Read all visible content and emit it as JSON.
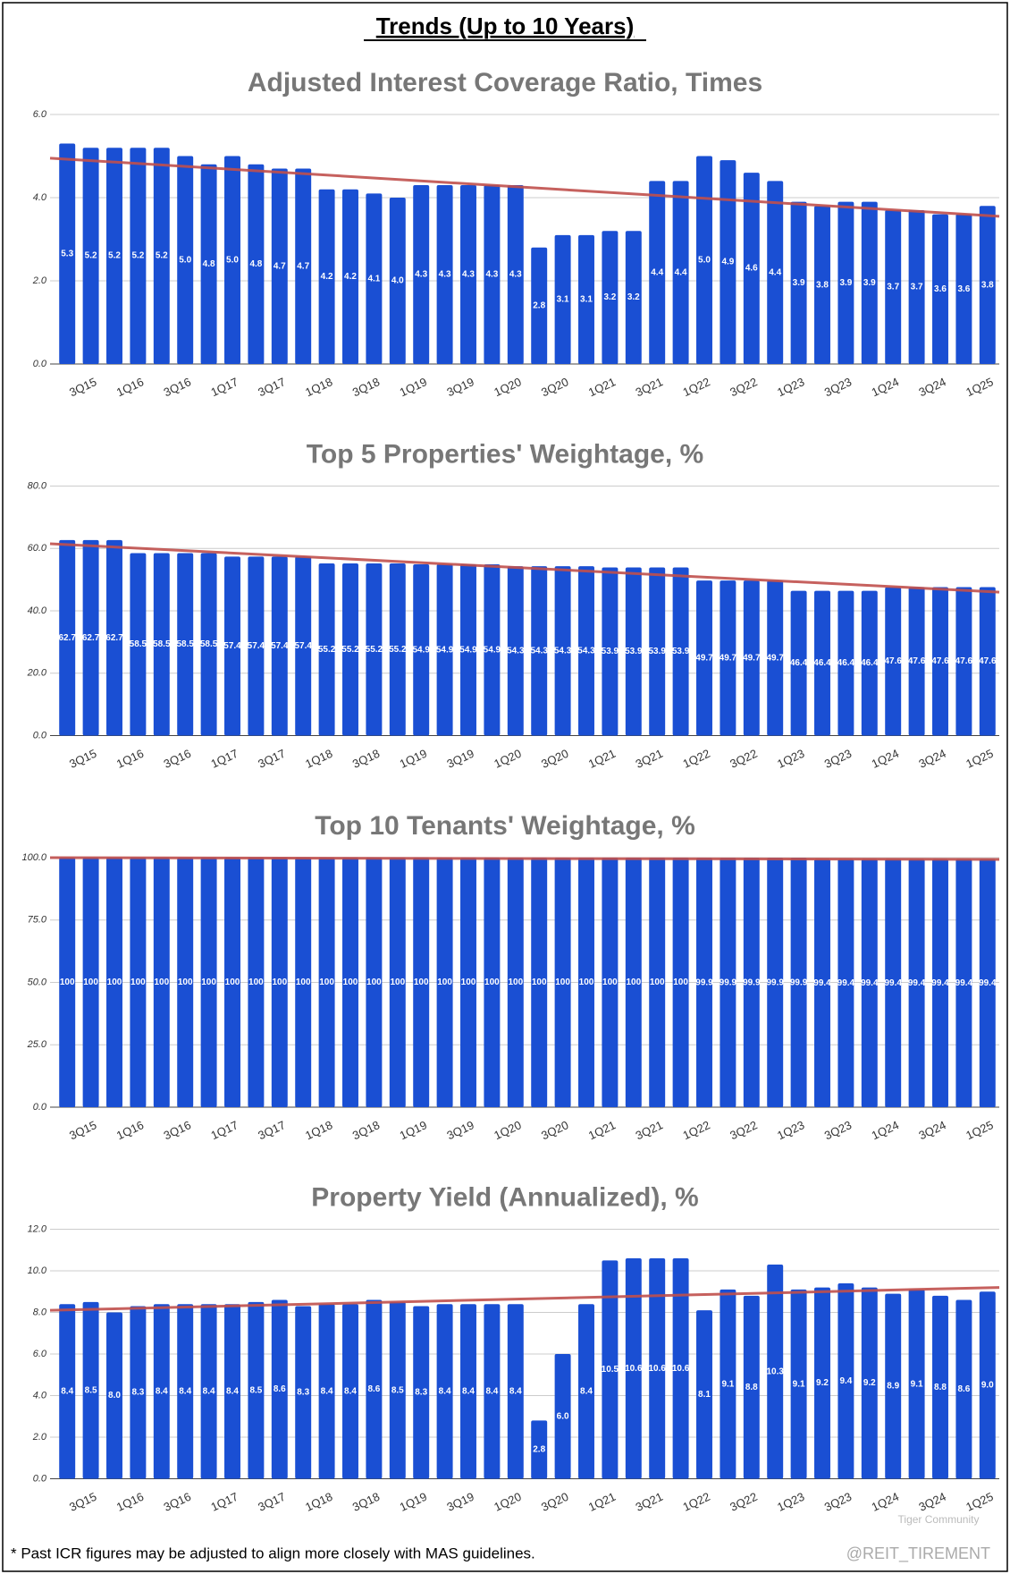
{
  "title": "Trends (Up to 10 Years)",
  "footnote": "* Past ICR figures may be adjusted to align more closely with MAS guidelines.",
  "watermark": [
    "Tiger Community",
    "@REIT_TIREMENT"
  ],
  "chart_data": [
    {
      "type": "bar",
      "title": "Adjusted Interest Coverage Ratio, Times",
      "color": "#1a4fd3",
      "categories": [
        null,
        "3Q15",
        null,
        "1Q16",
        null,
        "3Q16",
        null,
        "1Q17",
        null,
        "3Q17",
        null,
        "1Q18",
        null,
        "3Q18",
        null,
        "1Q19",
        null,
        "3Q19",
        null,
        "1Q20",
        null,
        "3Q20",
        null,
        "1Q21",
        null,
        "3Q21",
        null,
        "1Q22",
        null,
        "3Q22",
        null,
        "1Q23",
        null,
        "3Q23",
        null,
        "1Q24",
        null,
        "3Q24",
        null,
        "1Q25"
      ],
      "values": [
        5.3,
        5.2,
        5.2,
        5.2,
        5.2,
        5.0,
        4.8,
        5.0,
        4.8,
        4.7,
        4.7,
        4.2,
        4.2,
        4.1,
        4.0,
        4.3,
        4.3,
        4.3,
        4.3,
        4.3,
        2.8,
        3.1,
        3.1,
        3.2,
        3.2,
        4.4,
        4.4,
        5.0,
        4.9,
        4.6,
        4.4,
        3.9,
        3.8,
        3.9,
        3.9,
        3.7,
        3.7,
        3.6,
        3.6,
        3.8
      ],
      "value_labels": [
        "5.3",
        "5.2",
        "5.2",
        "5.2",
        "5.2",
        "5.0",
        "4.8",
        "5.0",
        "4.8",
        "4.7",
        "4.7",
        "4.2",
        "4.2",
        "4.1",
        "4.0",
        "4.3",
        "4.3",
        "4.3",
        "4.3",
        "4.3",
        "2.8",
        "3.1",
        "3.1",
        "3.2",
        "3.2",
        "4.4",
        "4.4",
        "5.0",
        "4.9",
        "4.6",
        "4.4",
        "3.9",
        "3.8",
        "3.9",
        "3.9",
        "3.7",
        "3.7",
        "3.6",
        "3.6",
        "3.8"
      ],
      "ylim": [
        0,
        6
      ],
      "yticks": [
        {
          "value": 0,
          "label": "0.0"
        },
        {
          "value": 2,
          "label": "2.0"
        },
        {
          "value": 4,
          "label": "4.0"
        },
        {
          "value": 6,
          "label": "6.0"
        }
      ],
      "grid": true,
      "trend": {
        "color": "#c0504d",
        "values": [
          4.95,
          3.55
        ]
      }
    },
    {
      "type": "bar",
      "title": "Top 5 Properties' Weightage, %",
      "color": "#1a4fd3",
      "categories": [
        null,
        "3Q15",
        null,
        "1Q16",
        null,
        "3Q16",
        null,
        "1Q17",
        null,
        "3Q17",
        null,
        "1Q18",
        null,
        "3Q18",
        null,
        "1Q19",
        null,
        "3Q19",
        null,
        "1Q20",
        null,
        "3Q20",
        null,
        "1Q21",
        null,
        "3Q21",
        null,
        "1Q22",
        null,
        "3Q22",
        null,
        "1Q23",
        null,
        "3Q23",
        null,
        "1Q24",
        null,
        "3Q24",
        null,
        "1Q25"
      ],
      "values": [
        62.7,
        62.7,
        62.7,
        58.5,
        58.5,
        58.5,
        58.5,
        57.4,
        57.4,
        57.4,
        57.4,
        55.2,
        55.2,
        55.2,
        55.2,
        54.9,
        54.9,
        54.9,
        54.9,
        54.3,
        54.3,
        54.3,
        54.3,
        53.9,
        53.9,
        53.9,
        53.9,
        49.7,
        49.7,
        49.7,
        49.7,
        46.4,
        46.4,
        46.4,
        46.4,
        47.6,
        47.6,
        47.6,
        47.6,
        47.6
      ],
      "ylim": [
        0,
        80
      ],
      "yticks": [
        {
          "value": 0,
          "label": "0.0"
        },
        {
          "value": 20,
          "label": "20.0"
        },
        {
          "value": 40,
          "label": "40.0"
        },
        {
          "value": 60,
          "label": "60.0"
        },
        {
          "value": 80,
          "label": "80.0"
        }
      ],
      "grid": true,
      "trend": {
        "color": "#c0504d",
        "values": [
          61.5,
          46
        ]
      }
    },
    {
      "type": "bar",
      "title": "Top 10 Tenants' Weightage, %",
      "color": "#1a4fd3",
      "categories": [
        null,
        "3Q15",
        null,
        "1Q16",
        null,
        "3Q16",
        null,
        "1Q17",
        null,
        "3Q17",
        null,
        "1Q18",
        null,
        "3Q18",
        null,
        "1Q19",
        null,
        "3Q19",
        null,
        "1Q20",
        null,
        "3Q20",
        null,
        "1Q21",
        null,
        "3Q21",
        null,
        "1Q22",
        null,
        "3Q22",
        null,
        "1Q23",
        null,
        "3Q23",
        null,
        "1Q24",
        null,
        "3Q24",
        null,
        "1Q25"
      ],
      "values": [
        100,
        100,
        100,
        100,
        100,
        100,
        100,
        100,
        100,
        100,
        100,
        100,
        100,
        100,
        100,
        100,
        100,
        100,
        100,
        100,
        100,
        100,
        100,
        100,
        100,
        100,
        100,
        99.9,
        99.9,
        99.9,
        99.9,
        99.9,
        99.4,
        99.4,
        99.4,
        99.4,
        99.4,
        99.4,
        99.4,
        99.4
      ],
      "ylim": [
        0,
        100
      ],
      "yticks": [
        {
          "value": 0,
          "label": "0.0"
        },
        {
          "value": 25,
          "label": "25.0"
        },
        {
          "value": 50,
          "label": "50.0"
        },
        {
          "value": 75,
          "label": "75.0"
        },
        {
          "value": 100,
          "label": "100.0"
        }
      ],
      "grid": true,
      "trend": {
        "color": "#c0504d",
        "values": [
          100,
          99.3
        ]
      }
    },
    {
      "type": "bar",
      "title": "Property Yield (Annualized), %",
      "color": "#1a4fd3",
      "categories": [
        null,
        "3Q15",
        null,
        "1Q16",
        null,
        "3Q16",
        null,
        "1Q17",
        null,
        "3Q17",
        null,
        "1Q18",
        null,
        "3Q18",
        null,
        "1Q19",
        null,
        "3Q19",
        null,
        "1Q20",
        null,
        "3Q20",
        null,
        "1Q21",
        null,
        "3Q21",
        null,
        "1Q22",
        null,
        "3Q22",
        null,
        "1Q23",
        null,
        "3Q23",
        null,
        "1Q24",
        null,
        "3Q24",
        null,
        "1Q25"
      ],
      "values": [
        8.4,
        8.5,
        8.0,
        8.3,
        8.4,
        8.4,
        8.4,
        8.4,
        8.5,
        8.6,
        8.3,
        8.4,
        8.4,
        8.6,
        8.5,
        8.3,
        8.4,
        8.4,
        8.4,
        8.4,
        2.8,
        6.0,
        8.4,
        10.5,
        10.6,
        10.6,
        10.6,
        8.1,
        9.1,
        8.8,
        10.3,
        9.1,
        9.2,
        9.4,
        9.2,
        8.9,
        9.1,
        8.8,
        8.6,
        9.0
      ],
      "value_labels": [
        "8.4",
        "8.5",
        "8.0",
        "8.3",
        "8.4",
        "8.4",
        "8.4",
        "8.4",
        "8.5",
        "8.6",
        "8.3",
        "8.4",
        "8.4",
        "8.6",
        "8.5",
        "8.3",
        "8.4",
        "8.4",
        "8.4",
        "8.4",
        "2.8",
        "6.0",
        "8.4",
        "10.5",
        "10.6",
        "10.6",
        "10.6",
        "8.1",
        "9.1",
        "8.8",
        "10.3",
        "9.1",
        "9.2",
        "9.4",
        "9.2",
        "8.9",
        "9.1",
        "8.8",
        "8.6",
        "9.0"
      ],
      "ylim": [
        0,
        12
      ],
      "yticks": [
        {
          "value": 0,
          "label": "0.0"
        },
        {
          "value": 2,
          "label": "2.0"
        },
        {
          "value": 4,
          "label": "4.0"
        },
        {
          "value": 6,
          "label": "6.0"
        },
        {
          "value": 8,
          "label": "8.0"
        },
        {
          "value": 10,
          "label": "10.0"
        },
        {
          "value": 12,
          "label": "12.0"
        }
      ],
      "grid": true,
      "trend": {
        "color": "#c0504d",
        "values": [
          8.1,
          9.2
        ]
      }
    }
  ]
}
